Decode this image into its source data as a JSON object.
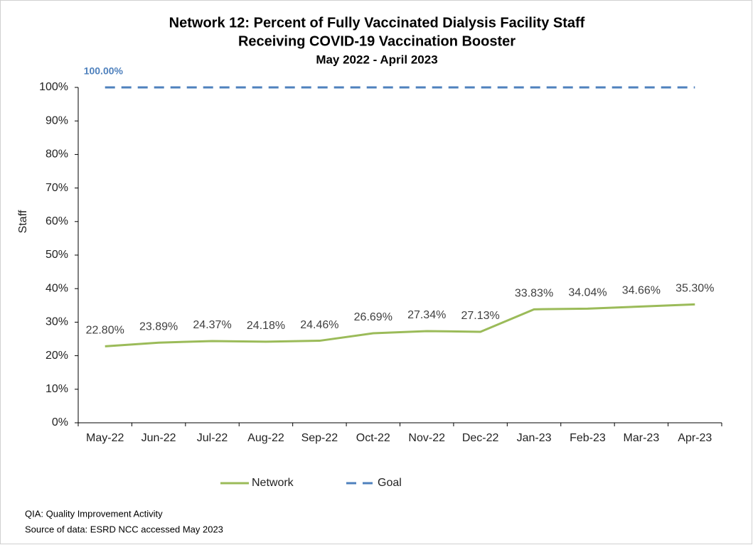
{
  "chart_data": {
    "type": "line",
    "title": [
      "Network 12: Percent of Fully Vaccinated Dialysis Facility Staff",
      "Receiving COVID-19 Vaccination Booster"
    ],
    "subtitle": "May 2022 - April 2023",
    "y_label": "Staff",
    "categories": [
      "May-22",
      "Jun-22",
      "Jul-22",
      "Aug-22",
      "Sep-22",
      "Oct-22",
      "Nov-22",
      "Dec-22",
      "Jan-23",
      "Feb-23",
      "Mar-23",
      "Apr-23"
    ],
    "series": [
      {
        "name": "Network",
        "color": "#9bbb59",
        "dash": false,
        "values": [
          22.8,
          23.89,
          24.37,
          24.18,
          24.46,
          26.69,
          27.34,
          27.13,
          33.83,
          34.04,
          34.66,
          35.3
        ],
        "value_labels": [
          "22.80%",
          "23.89%",
          "24.37%",
          "24.18%",
          "24.46%",
          "26.69%",
          "27.34%",
          "27.13%",
          "33.83%",
          "34.04%",
          "34.66%",
          "35.30%"
        ]
      },
      {
        "name": "Goal",
        "color": "#4f81bd",
        "dash": true,
        "values": [
          100,
          100,
          100,
          100,
          100,
          100,
          100,
          100,
          100,
          100,
          100,
          100
        ],
        "value_labels": [
          "100.00%",
          null,
          null,
          null,
          null,
          null,
          null,
          null,
          null,
          null,
          null,
          null
        ]
      }
    ],
    "ylim": [
      0,
      100
    ],
    "yticks": [
      {
        "value": 0,
        "label": "0%"
      },
      {
        "value": 10,
        "label": "10%"
      },
      {
        "value": 20,
        "label": "20%"
      },
      {
        "value": 30,
        "label": "30%"
      },
      {
        "value": 40,
        "label": "40%"
      },
      {
        "value": 50,
        "label": "50%"
      },
      {
        "value": 60,
        "label": "60%"
      },
      {
        "value": 70,
        "label": "70%"
      },
      {
        "value": 80,
        "label": "80%"
      },
      {
        "value": 90,
        "label": "90%"
      },
      {
        "value": 100,
        "label": "100%"
      }
    ],
    "legend": "bottom",
    "notes": [
      "QIA:  Quality Improvement Activity",
      "Source of data:  ESRD NCC accessed May 2023"
    ]
  }
}
